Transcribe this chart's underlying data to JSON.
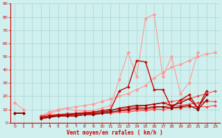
{
  "xlabel": "Vent moyen/en rafales ( km/h )",
  "background_color": "#cff0ee",
  "grid_color": "#aad4d0",
  "x_values": [
    0,
    1,
    2,
    3,
    4,
    5,
    6,
    7,
    8,
    9,
    10,
    11,
    12,
    13,
    14,
    15,
    16,
    17,
    18,
    19,
    20,
    21,
    22,
    23
  ],
  "xlim": [
    -0.5,
    23.5
  ],
  "ylim": [
    0,
    90
  ],
  "yticks": [
    0,
    10,
    20,
    30,
    40,
    50,
    60,
    70,
    80,
    90
  ],
  "xticks": [
    0,
    1,
    2,
    3,
    4,
    5,
    6,
    7,
    8,
    9,
    10,
    11,
    12,
    13,
    14,
    15,
    16,
    17,
    18,
    19,
    20,
    21,
    22,
    23
  ],
  "series": [
    {
      "color": "#ff9999",
      "values": [
        15,
        10,
        null,
        5,
        8,
        10,
        11,
        9,
        9,
        9,
        11,
        13,
        33,
        53,
        35,
        79,
        82,
        35,
        50,
        22,
        30,
        53,
        null,
        null
      ],
      "marker": "D",
      "markersize": 2.5,
      "linewidth": 0.8,
      "linestyle": "-"
    },
    {
      "color": "#ff9999",
      "values": [
        null,
        null,
        null,
        5,
        7,
        9,
        11,
        12,
        13,
        14,
        16,
        18,
        20,
        22,
        25,
        28,
        34,
        38,
        42,
        44,
        47,
        50,
        52,
        53
      ],
      "marker": "D",
      "markersize": 2.5,
      "linewidth": 0.8,
      "linestyle": "-"
    },
    {
      "color": "#ff4444",
      "values": [
        7,
        7,
        null,
        5,
        6,
        6,
        7,
        7,
        8,
        8,
        9,
        10,
        10,
        11,
        12,
        13,
        14,
        15,
        16,
        17,
        18,
        20,
        22,
        24
      ],
      "marker": "D",
      "markersize": 2,
      "linewidth": 0.8,
      "linestyle": "-"
    },
    {
      "color": "#ff4444",
      "values": [
        7,
        7,
        null,
        4,
        5,
        5,
        6,
        6,
        7,
        7,
        7,
        8,
        9,
        9,
        10,
        10,
        11,
        12,
        13,
        13,
        14,
        15,
        16,
        16
      ],
      "marker": "D",
      "markersize": 2,
      "linewidth": 0.8,
      "linestyle": "-"
    },
    {
      "color": "#ff4444",
      "values": [
        7,
        7,
        null,
        3,
        4,
        5,
        5,
        5,
        6,
        6,
        7,
        7,
        8,
        8,
        9,
        9,
        10,
        10,
        11,
        11,
        12,
        12,
        12,
        13
      ],
      "marker": "D",
      "markersize": 2,
      "linewidth": 0.8,
      "linestyle": "-"
    },
    {
      "color": "#cc0000",
      "values": [
        7,
        7,
        null,
        4,
        5,
        6,
        6,
        7,
        7,
        8,
        9,
        10,
        24,
        27,
        47,
        46,
        25,
        25,
        11,
        17,
        21,
        11,
        24,
        null
      ],
      "marker": "D",
      "markersize": 2,
      "linewidth": 1.0,
      "linestyle": "-"
    },
    {
      "color": "#aa0000",
      "values": [
        7,
        7,
        null,
        4,
        5,
        5,
        6,
        6,
        7,
        7,
        8,
        9,
        11,
        12,
        13,
        13,
        14,
        15,
        13,
        15,
        18,
        11,
        21,
        null
      ],
      "marker": "D",
      "markersize": 2,
      "linewidth": 1.0,
      "linestyle": "-"
    },
    {
      "color": "#880000",
      "values": [
        7,
        7,
        null,
        3,
        4,
        5,
        5,
        5,
        6,
        6,
        7,
        8,
        9,
        10,
        11,
        11,
        12,
        12,
        11,
        12,
        13,
        10,
        17,
        null
      ],
      "marker": "D",
      "markersize": 2,
      "linewidth": 1.0,
      "linestyle": "-"
    }
  ]
}
